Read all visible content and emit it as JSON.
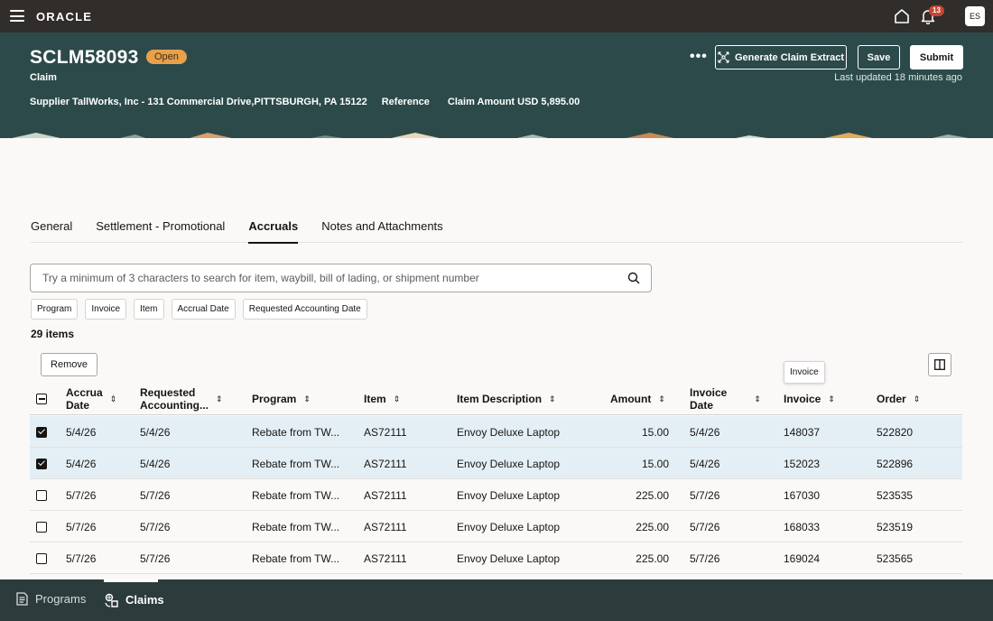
{
  "topbar": {
    "logo": "ORACLE",
    "notifications_count": "13",
    "user_initials": "ES"
  },
  "header": {
    "claim_id": "SCLM58093",
    "status": "Open",
    "claim_type": "Claim",
    "supplier": "Supplier TallWorks, Inc - 131 Commercial Drive,PITTSBURGH, PA 15122",
    "reference": "Reference",
    "claim_amount": "Claim Amount USD 5,895.00",
    "more_label": "•••",
    "generate_label": "Generate Claim Extract",
    "save_label": "Save",
    "submit_label": "Submit",
    "last_updated": "Last updated 18 minutes ago"
  },
  "tabs": [
    {
      "label": "General"
    },
    {
      "label": "Settlement - Promotional"
    },
    {
      "label": "Accruals"
    },
    {
      "label": "Notes and Attachments"
    }
  ],
  "search": {
    "placeholder": "Try a minimum of 3 characters to search for item, waybill, bill of lading, or shipment number",
    "value": ""
  },
  "filters": [
    "Program",
    "Invoice",
    "Item",
    "Accrual Date",
    "Requested Accounting Date"
  ],
  "count_label": "29 items",
  "remove_label": "Remove",
  "tooltip": "Invoice",
  "columns": {
    "accrual_date_1": "Accrua",
    "accrual_date_2": "Date",
    "req_acct_1": "Requested",
    "req_acct_2": "Accounting...",
    "program": "Program",
    "item": "Item",
    "item_desc": "Item Description",
    "amount": "Amount",
    "invoice_date_1": "Invoice",
    "invoice_date_2": "Date",
    "invoice": "Invoice",
    "order": "Order"
  },
  "rows": [
    {
      "selected": true,
      "accrual_date": "5/4/26",
      "req_date": "5/4/26",
      "program": "Rebate from TW...",
      "item": "AS72111",
      "desc": "Envoy Deluxe Laptop",
      "amount": "15.00",
      "invoice_date": "5/4/26",
      "invoice": "148037",
      "order": "522820"
    },
    {
      "selected": true,
      "accrual_date": "5/4/26",
      "req_date": "5/4/26",
      "program": "Rebate from TW...",
      "item": "AS72111",
      "desc": "Envoy Deluxe Laptop",
      "amount": "15.00",
      "invoice_date": "5/4/26",
      "invoice": "152023",
      "order": "522896"
    },
    {
      "selected": false,
      "accrual_date": "5/7/26",
      "req_date": "5/7/26",
      "program": "Rebate from TW...",
      "item": "AS72111",
      "desc": "Envoy Deluxe Laptop",
      "amount": "225.00",
      "invoice_date": "5/7/26",
      "invoice": "167030",
      "order": "523535"
    },
    {
      "selected": false,
      "accrual_date": "5/7/26",
      "req_date": "5/7/26",
      "program": "Rebate from TW...",
      "item": "AS72111",
      "desc": "Envoy Deluxe Laptop",
      "amount": "225.00",
      "invoice_date": "5/7/26",
      "invoice": "168033",
      "order": "523519"
    },
    {
      "selected": false,
      "accrual_date": "5/7/26",
      "req_date": "5/7/26",
      "program": "Rebate from TW...",
      "item": "AS72111",
      "desc": "Envoy Deluxe Laptop",
      "amount": "225.00",
      "invoice_date": "5/7/26",
      "invoice": "169024",
      "order": "523565"
    }
  ],
  "bottom_nav": [
    {
      "label": "Programs",
      "icon": "document-icon"
    },
    {
      "label": "Claims",
      "icon": "claims-icon"
    }
  ]
}
